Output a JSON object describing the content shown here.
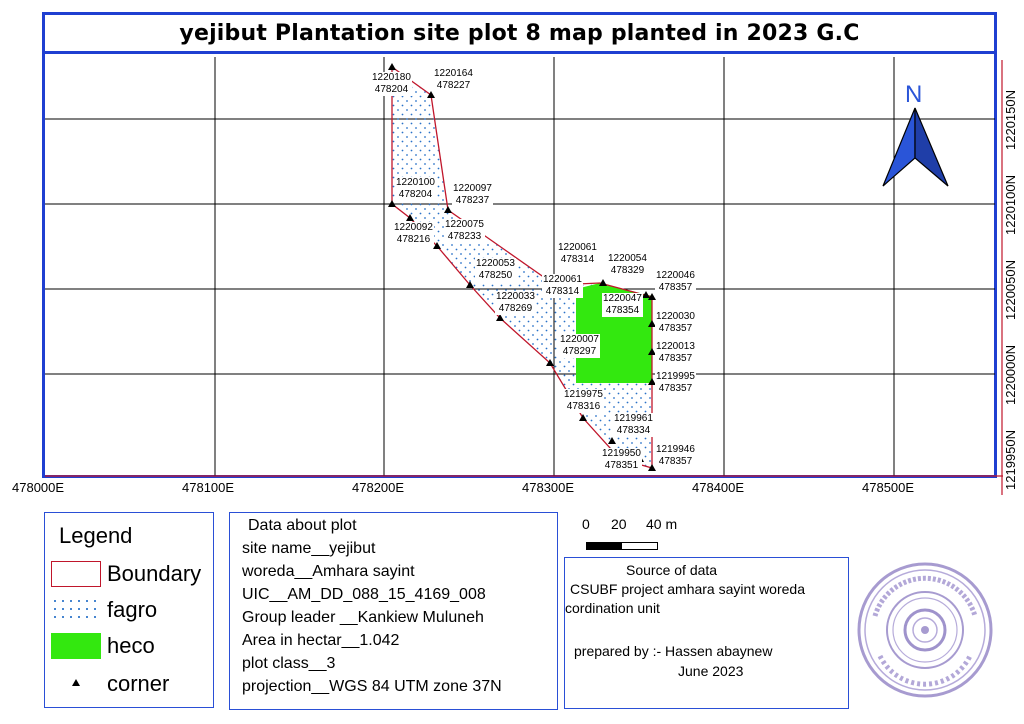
{
  "title": "yejibut Plantation site plot 8 map planted in 2023 G.C",
  "colors": {
    "frame_blue": "#1f3fd1",
    "boundary": "#c0162b",
    "fagro_dots": "#2a72c8",
    "heco": "#33e80f",
    "grid": "#000000",
    "north_arrow": "#2a55d8"
  },
  "north_arrow": {
    "label": "N"
  },
  "x_axis_labels": [
    "478000E",
    "478100E",
    "478200E",
    "478300E",
    "478400E",
    "478500E"
  ],
  "y_axis_labels": [
    "1219950N",
    "1220000N",
    "1220050N",
    "1220100N",
    "1220150N"
  ],
  "corner_labels": [
    {
      "n": "1220180",
      "e": "478204"
    },
    {
      "n": "1220164",
      "e": "478227"
    },
    {
      "n": "1220100",
      "e": "478204"
    },
    {
      "n": "1220097",
      "e": "478237"
    },
    {
      "n": "1220092",
      "e": "478216"
    },
    {
      "n": "1220075",
      "e": "478233"
    },
    {
      "n": "1220061",
      "e": "478314"
    },
    {
      "n": "1220054",
      "e": "478329"
    },
    {
      "n": "1220053",
      "e": "478250"
    },
    {
      "n": "1220061",
      "e": "478314"
    },
    {
      "n": "1220046",
      "e": "478357"
    },
    {
      "n": "1220033",
      "e": "478269"
    },
    {
      "n": "1220047",
      "e": "478354"
    },
    {
      "n": "1220030",
      "e": "478357"
    },
    {
      "n": "1220007",
      "e": "478297"
    },
    {
      "n": "1220013",
      "e": "478357"
    },
    {
      "n": "1219995",
      "e": "478357"
    },
    {
      "n": "1219975",
      "e": "478316"
    },
    {
      "n": "1219961",
      "e": "478334"
    },
    {
      "n": "1219950",
      "e": "478351"
    },
    {
      "n": "1219946",
      "e": "478357"
    }
  ],
  "legend": {
    "title": "Legend",
    "items": [
      {
        "label": "Boundary",
        "symbol": "boundary"
      },
      {
        "label": "fagro",
        "symbol": "dots"
      },
      {
        "label": "heco",
        "symbol": "green-fill"
      },
      {
        "label": "corner",
        "symbol": "triangle"
      }
    ]
  },
  "plot_data": {
    "heading": "Data about plot",
    "lines": [
      "site name__yejibut",
      "woreda__Amhara sayint",
      "UIC__AM_DD_088_15_4169_008",
      "Group leader __Kankiew Muluneh",
      "Area in hectar__1.042",
      "plot class__3",
      "projection__WGS 84 UTM zone 37N"
    ]
  },
  "scale_bar": {
    "ticks": [
      "0",
      "20",
      "40 m"
    ]
  },
  "source": {
    "heading": "Source of data",
    "line1": "CSUBF project amhara sayint woreda",
    "line2": "cordination unit",
    "prepared": "prepared by :- Hassen abaynew",
    "date": "June 2023"
  },
  "stamp": {
    "text": "official seal"
  }
}
